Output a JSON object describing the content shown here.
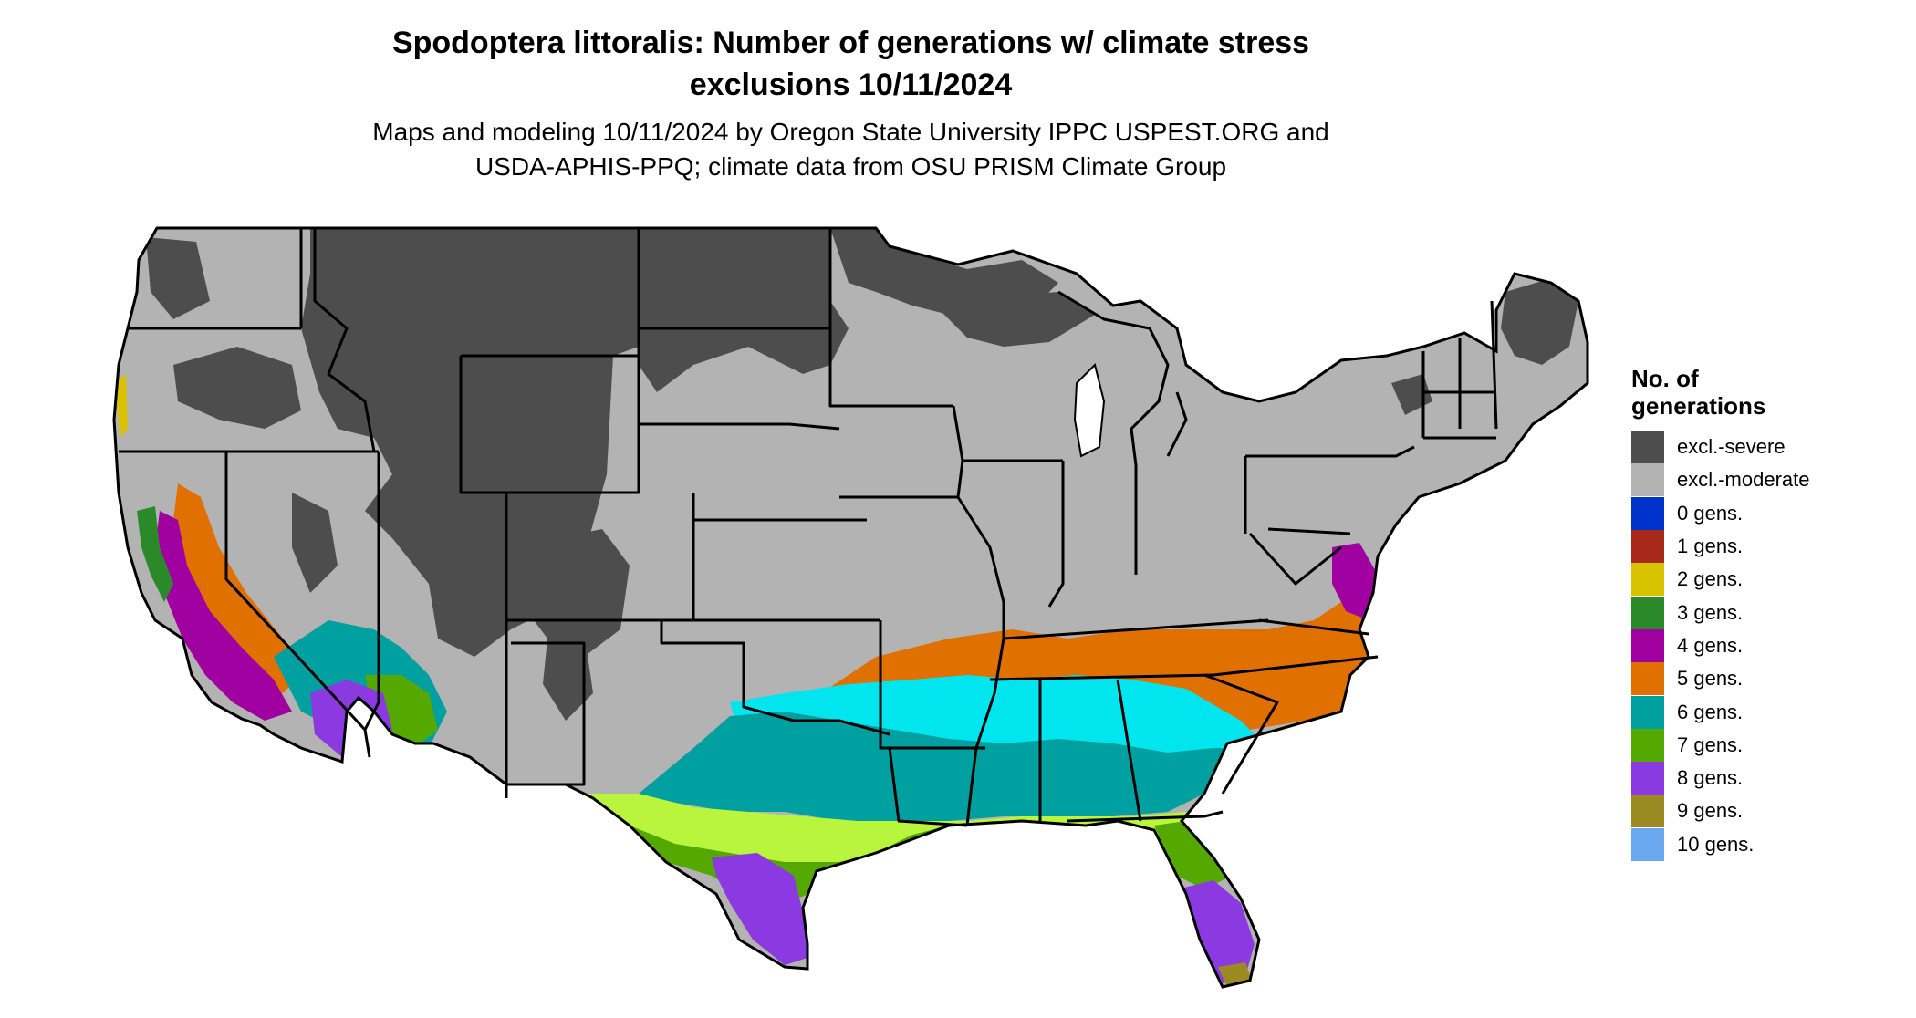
{
  "title": {
    "line1": "Spodoptera littoralis: Number of generations w/ climate stress",
    "line2": "exclusions 10/11/2024"
  },
  "subtitle": {
    "line1": "Maps and modeling 10/11/2024 by Oregon State University IPPC USPEST.ORG and",
    "line2": "USDA-APHIS-PPQ; climate data from OSU PRISM Climate Group"
  },
  "legend": {
    "title_line1": "No. of",
    "title_line2": "generations",
    "items": [
      {
        "label": "excl.-severe",
        "color": "#4d4d4d"
      },
      {
        "label": "excl.-moderate",
        "color": "#b3b3b3"
      },
      {
        "label": "0 gens.",
        "color": "#0033cc"
      },
      {
        "label": "1 gens.",
        "color": "#a8291b"
      },
      {
        "label": "2 gens.",
        "color": "#d9c200"
      },
      {
        "label": "3 gens.",
        "color": "#2a8a2a"
      },
      {
        "label": "4 gens.",
        "color": "#a000a0"
      },
      {
        "label": "5 gens.",
        "color": "#e07000"
      },
      {
        "label": "6 gens.",
        "color": "#00a0a0"
      },
      {
        "label": "7 gens.",
        "color": "#55a800"
      },
      {
        "label": "8 gens.",
        "color": "#8a3ae0"
      },
      {
        "label": "9 gens.",
        "color": "#9b8a22"
      },
      {
        "label": "10 gens.",
        "color": "#6aa8f0"
      }
    ]
  },
  "map_colors": {
    "bright_cyan": "#00e5ee",
    "lime": "#b8f53c"
  }
}
